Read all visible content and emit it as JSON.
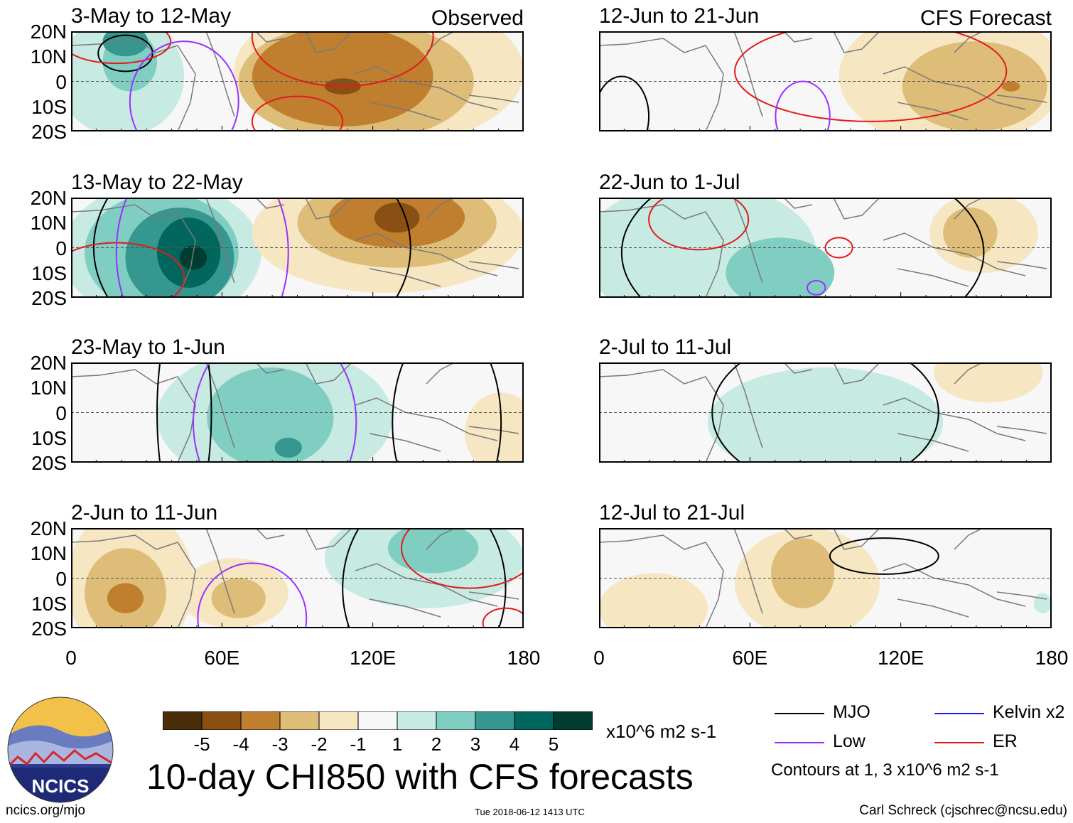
{
  "chart_data": {
    "type": "heatmap",
    "title": "10-day CHI850 with CFS forecasts",
    "variable": "CHI850",
    "units": "x10^6 m2 s-1",
    "x_axis": {
      "range": [
        0,
        180
      ],
      "ticks": [
        "0",
        "60E",
        "120E",
        "180"
      ]
    },
    "y_axis": {
      "range": [
        -20,
        20
      ],
      "ticks": [
        "20N",
        "10N",
        "0",
        "10S",
        "20S"
      ]
    },
    "columns": {
      "left": "Observed",
      "right": "CFS Forecast"
    },
    "colorbar": {
      "labels": [
        "-5",
        "-4",
        "-3",
        "-2",
        "-1",
        "1",
        "2",
        "3",
        "4",
        "5"
      ],
      "colors": [
        "#4a2e0a",
        "#8a4f13",
        "#bf7f2f",
        "#ddbd78",
        "#f6e6c2",
        "#f7f7f7",
        "#c7ebe2",
        "#80cdc1",
        "#35978f",
        "#01665e",
        "#003c30"
      ]
    },
    "panels": [
      {
        "id": "p1",
        "title": "3-May to 12-May",
        "tag": "Observed"
      },
      {
        "id": "p2",
        "title": "13-May to 22-May",
        "tag": ""
      },
      {
        "id": "p3",
        "title": "23-May to 1-Jun",
        "tag": ""
      },
      {
        "id": "p4",
        "title": "2-Jun to 11-Jun",
        "tag": ""
      },
      {
        "id": "p5",
        "title": "12-Jun to 21-Jun",
        "tag": "CFS Forecast"
      },
      {
        "id": "p6",
        "title": "22-Jun to 1-Jul",
        "tag": ""
      },
      {
        "id": "p7",
        "title": "2-Jul to 11-Jul",
        "tag": ""
      },
      {
        "id": "p8",
        "title": "12-Jul to 21-Jul",
        "tag": ""
      }
    ],
    "legend": {
      "entries": [
        {
          "label": "MJO",
          "color": "#000000"
        },
        {
          "label": "Kelvin x2",
          "color": "#1a1aff"
        },
        {
          "label": "Low",
          "color": "#9b30ff"
        },
        {
          "label": "ER",
          "color": "#e31a1c"
        }
      ],
      "contour_note": "Contours at 1, 3 x10^6 m2 s-1"
    }
  },
  "logo": {
    "text": "NCICS"
  },
  "footer": {
    "url": "ncics.org/mjo",
    "timestamp": "Tue 2018-06-12 1413 UTC",
    "author": "Carl Schreck (cjschrec@ncsu.edu)"
  }
}
